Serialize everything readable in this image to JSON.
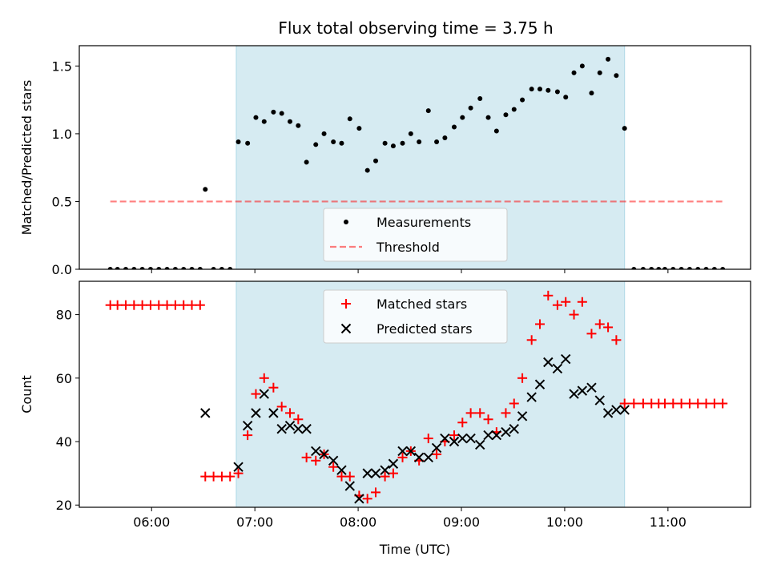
{
  "title": "Flux total observing time = 3.75 h",
  "colors": {
    "shade": "#add8e6",
    "measurements": "#000000",
    "threshold": "#ff0000",
    "matched": "#ff0000",
    "predicted": "#000000"
  },
  "chart_data": [
    {
      "type": "scatter",
      "ylabel": "Matched/Predicted stars",
      "xlim": [
        5.3,
        11.8
      ],
      "ylim": [
        0.0,
        1.65
      ],
      "yticks": [
        0.0,
        0.5,
        1.0,
        1.5
      ],
      "ytick_labels": [
        "0.0",
        "0.5",
        "1.0",
        "1.5"
      ],
      "xticks": [
        6,
        7,
        8,
        9,
        10,
        11
      ],
      "shaded_span": [
        6.82,
        10.58
      ],
      "legend": {
        "placement": "lower-center",
        "entries": [
          "Measurements",
          "Threshold"
        ]
      },
      "threshold": {
        "name": "Threshold",
        "y": 0.5,
        "x_range": [
          5.6,
          11.55
        ],
        "style": "dashed"
      },
      "series": [
        {
          "name": "Measurements",
          "marker": "dot",
          "points": [
            [
              5.6,
              0
            ],
            [
              5.67,
              0
            ],
            [
              5.75,
              0
            ],
            [
              5.83,
              0
            ],
            [
              5.91,
              0
            ],
            [
              5.99,
              0
            ],
            [
              6.07,
              0
            ],
            [
              6.15,
              0
            ],
            [
              6.23,
              0
            ],
            [
              6.31,
              0
            ],
            [
              6.39,
              0
            ],
            [
              6.47,
              0
            ],
            [
              6.52,
              0.59
            ],
            [
              6.6,
              0
            ],
            [
              6.68,
              0
            ],
            [
              6.76,
              0
            ],
            [
              6.84,
              0.94
            ],
            [
              6.93,
              0.93
            ],
            [
              7.01,
              1.12
            ],
            [
              7.09,
              1.09
            ],
            [
              7.18,
              1.16
            ],
            [
              7.26,
              1.15
            ],
            [
              7.34,
              1.09
            ],
            [
              7.42,
              1.06
            ],
            [
              7.5,
              0.79
            ],
            [
              7.59,
              0.92
            ],
            [
              7.67,
              1.0
            ],
            [
              7.76,
              0.94
            ],
            [
              7.84,
              0.93
            ],
            [
              7.92,
              1.11
            ],
            [
              8.01,
              1.04
            ],
            [
              8.09,
              0.73
            ],
            [
              8.17,
              0.8
            ],
            [
              8.26,
              0.93
            ],
            [
              8.34,
              0.91
            ],
            [
              8.43,
              0.93
            ],
            [
              8.51,
              1.0
            ],
            [
              8.59,
              0.94
            ],
            [
              8.68,
              1.17
            ],
            [
              8.76,
              0.94
            ],
            [
              8.84,
              0.97
            ],
            [
              8.93,
              1.05
            ],
            [
              9.01,
              1.12
            ],
            [
              9.09,
              1.19
            ],
            [
              9.18,
              1.26
            ],
            [
              9.26,
              1.12
            ],
            [
              9.34,
              1.02
            ],
            [
              9.43,
              1.14
            ],
            [
              9.51,
              1.18
            ],
            [
              9.59,
              1.25
            ],
            [
              9.68,
              1.33
            ],
            [
              9.76,
              1.33
            ],
            [
              9.84,
              1.32
            ],
            [
              9.93,
              1.31
            ],
            [
              10.01,
              1.27
            ],
            [
              10.09,
              1.45
            ],
            [
              10.17,
              1.5
            ],
            [
              10.26,
              1.3
            ],
            [
              10.34,
              1.45
            ],
            [
              10.42,
              1.55
            ],
            [
              10.5,
              1.43
            ],
            [
              10.58,
              1.04
            ],
            [
              10.67,
              0
            ],
            [
              10.76,
              0
            ],
            [
              10.84,
              0
            ],
            [
              10.91,
              0
            ],
            [
              10.97,
              0
            ],
            [
              11.05,
              0
            ],
            [
              11.13,
              0
            ],
            [
              11.21,
              0
            ],
            [
              11.29,
              0
            ],
            [
              11.37,
              0
            ],
            [
              11.45,
              0
            ],
            [
              11.53,
              0
            ]
          ]
        }
      ]
    },
    {
      "type": "scatter",
      "ylabel": "Count",
      "xlabel": "Time (UTC)",
      "xlim": [
        5.3,
        11.8
      ],
      "ylim": [
        19.3,
        90.5
      ],
      "yticks": [
        20,
        40,
        60,
        80
      ],
      "ytick_labels": [
        "20",
        "40",
        "60",
        "80"
      ],
      "xticks": [
        6,
        7,
        8,
        9,
        10,
        11
      ],
      "xtick_labels": [
        "06:00",
        "07:00",
        "08:00",
        "09:00",
        "10:00",
        "11:00"
      ],
      "shaded_span": [
        6.82,
        10.58
      ],
      "legend": {
        "placement": "upper-center",
        "entries": [
          "Matched stars",
          "Predicted stars"
        ]
      },
      "series": [
        {
          "name": "Matched stars",
          "marker": "plus",
          "points": [
            [
              5.6,
              83
            ],
            [
              5.67,
              83
            ],
            [
              5.75,
              83
            ],
            [
              5.83,
              83
            ],
            [
              5.91,
              83
            ],
            [
              5.99,
              83
            ],
            [
              6.07,
              83
            ],
            [
              6.15,
              83
            ],
            [
              6.23,
              83
            ],
            [
              6.31,
              83
            ],
            [
              6.39,
              83
            ],
            [
              6.47,
              83
            ],
            [
              6.52,
              29
            ],
            [
              6.6,
              29
            ],
            [
              6.68,
              29
            ],
            [
              6.76,
              29
            ],
            [
              6.84,
              30
            ],
            [
              6.93,
              42
            ],
            [
              7.01,
              55
            ],
            [
              7.09,
              60
            ],
            [
              7.18,
              57
            ],
            [
              7.26,
              51
            ],
            [
              7.34,
              49
            ],
            [
              7.42,
              47
            ],
            [
              7.5,
              35
            ],
            [
              7.59,
              34
            ],
            [
              7.67,
              36
            ],
            [
              7.76,
              32
            ],
            [
              7.84,
              29
            ],
            [
              7.92,
              29
            ],
            [
              8.01,
              23
            ],
            [
              8.09,
              22
            ],
            [
              8.17,
              24
            ],
            [
              8.26,
              29
            ],
            [
              8.34,
              30
            ],
            [
              8.43,
              35
            ],
            [
              8.51,
              37
            ],
            [
              8.59,
              34
            ],
            [
              8.68,
              41
            ],
            [
              8.76,
              36
            ],
            [
              8.84,
              40
            ],
            [
              8.93,
              42
            ],
            [
              9.01,
              46
            ],
            [
              9.09,
              49
            ],
            [
              9.18,
              49
            ],
            [
              9.26,
              47
            ],
            [
              9.34,
              43
            ],
            [
              9.43,
              49
            ],
            [
              9.51,
              52
            ],
            [
              9.59,
              60
            ],
            [
              9.68,
              72
            ],
            [
              9.76,
              77
            ],
            [
              9.84,
              86
            ],
            [
              9.93,
              83
            ],
            [
              10.01,
              84
            ],
            [
              10.09,
              80
            ],
            [
              10.17,
              84
            ],
            [
              10.26,
              74
            ],
            [
              10.34,
              77
            ],
            [
              10.42,
              76
            ],
            [
              10.5,
              72
            ],
            [
              10.58,
              52
            ],
            [
              10.67,
              52
            ],
            [
              10.76,
              52
            ],
            [
              10.84,
              52
            ],
            [
              10.91,
              52
            ],
            [
              10.97,
              52
            ],
            [
              11.05,
              52
            ],
            [
              11.13,
              52
            ],
            [
              11.21,
              52
            ],
            [
              11.29,
              52
            ],
            [
              11.37,
              52
            ],
            [
              11.45,
              52
            ],
            [
              11.53,
              52
            ]
          ]
        },
        {
          "name": "Predicted stars",
          "marker": "x",
          "points": [
            [
              6.52,
              49
            ],
            [
              6.84,
              32
            ],
            [
              6.93,
              45
            ],
            [
              7.01,
              49
            ],
            [
              7.09,
              55
            ],
            [
              7.18,
              49
            ],
            [
              7.26,
              44
            ],
            [
              7.34,
              45
            ],
            [
              7.42,
              44
            ],
            [
              7.5,
              44
            ],
            [
              7.59,
              37
            ],
            [
              7.67,
              36
            ],
            [
              7.76,
              34
            ],
            [
              7.84,
              31
            ],
            [
              7.92,
              26
            ],
            [
              8.01,
              22
            ],
            [
              8.09,
              30
            ],
            [
              8.17,
              30
            ],
            [
              8.26,
              31
            ],
            [
              8.34,
              33
            ],
            [
              8.43,
              37
            ],
            [
              8.51,
              37
            ],
            [
              8.59,
              35
            ],
            [
              8.68,
              35
            ],
            [
              8.76,
              38
            ],
            [
              8.84,
              41
            ],
            [
              8.93,
              40
            ],
            [
              9.01,
              41
            ],
            [
              9.09,
              41
            ],
            [
              9.18,
              39
            ],
            [
              9.26,
              42
            ],
            [
              9.34,
              42
            ],
            [
              9.43,
              43
            ],
            [
              9.51,
              44
            ],
            [
              9.59,
              48
            ],
            [
              9.68,
              54
            ],
            [
              9.76,
              58
            ],
            [
              9.84,
              65
            ],
            [
              9.93,
              63
            ],
            [
              10.01,
              66
            ],
            [
              10.09,
              55
            ],
            [
              10.17,
              56
            ],
            [
              10.26,
              57
            ],
            [
              10.34,
              53
            ],
            [
              10.42,
              49
            ],
            [
              10.5,
              50
            ],
            [
              10.58,
              50
            ]
          ]
        }
      ]
    }
  ]
}
